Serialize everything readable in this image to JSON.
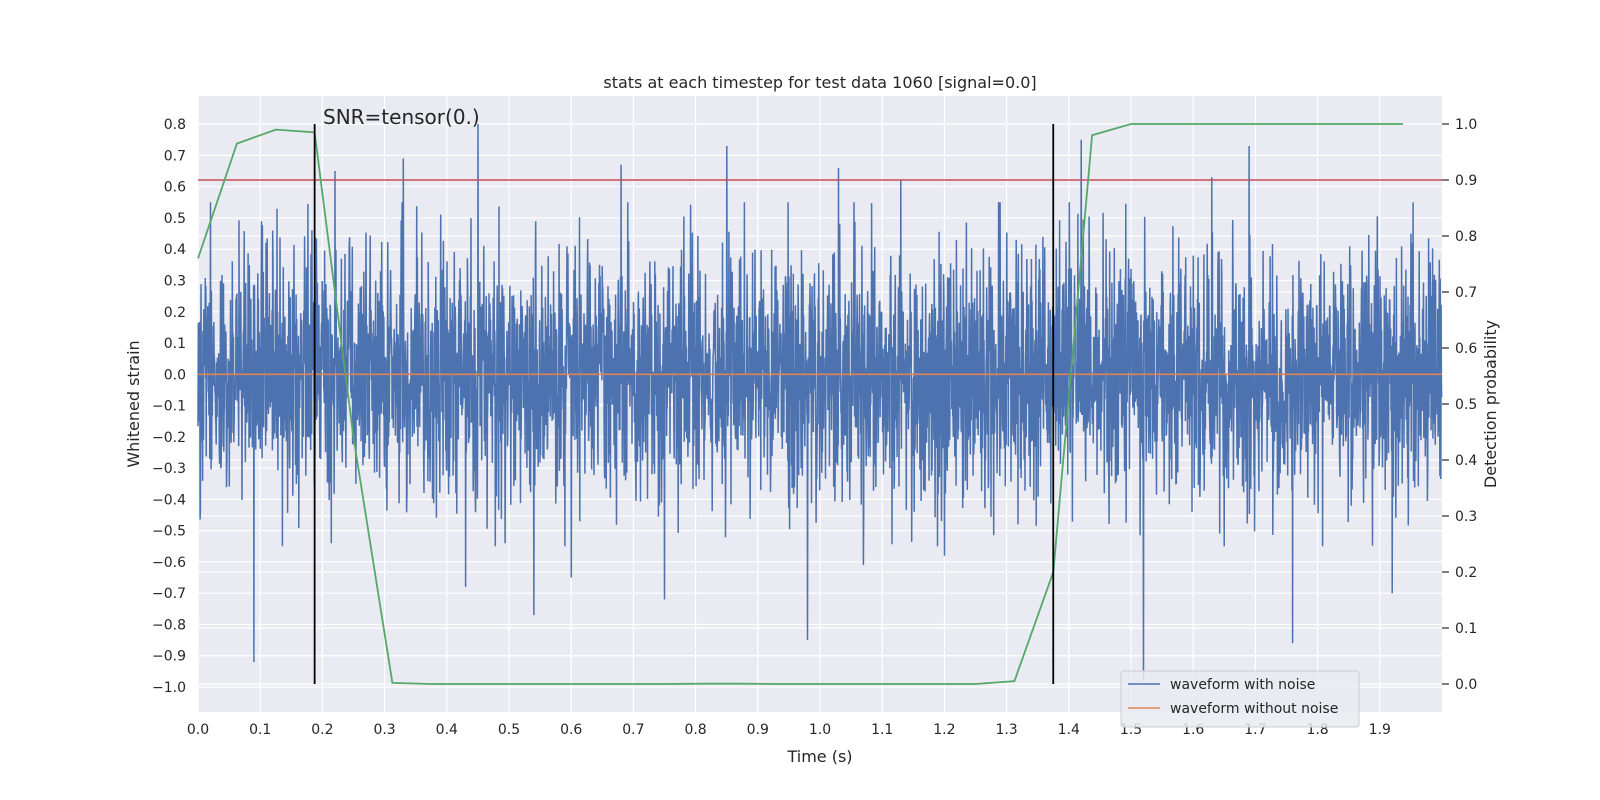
{
  "chart_data": {
    "type": "line",
    "title": "stats at each timestep for test data 1060 [signal=0.0]",
    "xlabel": "Time (s)",
    "ylabel": "Whitened strain",
    "y2label": "Detection probability",
    "xlim": [
      0.0,
      2.0
    ],
    "ylim": [
      -1.08,
      0.89
    ],
    "y2lim": [
      -0.05,
      1.05
    ],
    "xticks": [
      "0.0",
      "0.1",
      "0.2",
      "0.3",
      "0.4",
      "0.5",
      "0.6",
      "0.7",
      "0.8",
      "0.9",
      "1.0",
      "1.1",
      "1.2",
      "1.3",
      "1.4",
      "1.5",
      "1.6",
      "1.7",
      "1.8",
      "1.9"
    ],
    "yticks": [
      "0.8",
      "0.7",
      "0.6",
      "0.5",
      "0.4",
      "0.3",
      "0.2",
      "0.1",
      "0.0",
      "−0.1",
      "−0.2",
      "−0.3",
      "−0.4",
      "−0.5",
      "−0.6",
      "−0.7",
      "−0.8",
      "−0.9",
      "−1.0"
    ],
    "y2ticks": [
      "1.0",
      "0.9",
      "0.8",
      "0.7",
      "0.6",
      "0.5",
      "0.4",
      "0.3",
      "0.2",
      "0.1",
      "0.0"
    ],
    "grid": true,
    "legend_position": "lower-right",
    "annotation": "SNR=tensor(0.)",
    "series": [
      {
        "name": "waveform with noise",
        "color": "#4c72b0",
        "kind": "noise",
        "sample_rate": 2048,
        "std": 0.2,
        "spikes": [
          [
            0.02,
            0.55
          ],
          [
            0.09,
            -0.92
          ],
          [
            0.12,
            0.46
          ],
          [
            0.22,
            0.65
          ],
          [
            0.33,
            0.69
          ],
          [
            0.43,
            -0.68
          ],
          [
            0.45,
            0.8
          ],
          [
            0.54,
            -0.77
          ],
          [
            0.6,
            -0.65
          ],
          [
            0.68,
            0.67
          ],
          [
            0.75,
            -0.72
          ],
          [
            0.85,
            0.73
          ],
          [
            0.98,
            -0.85
          ],
          [
            1.03,
            0.66
          ],
          [
            1.07,
            -0.61
          ],
          [
            1.13,
            0.62
          ],
          [
            1.2,
            -0.58
          ],
          [
            1.42,
            0.75
          ],
          [
            1.52,
            -0.98
          ],
          [
            1.63,
            0.63
          ],
          [
            1.69,
            0.73
          ],
          [
            1.76,
            -0.86
          ],
          [
            1.92,
            -0.7
          ],
          [
            1.95,
            0.45
          ]
        ]
      },
      {
        "name": "waveform without noise",
        "color": "#dd8452",
        "kind": "constant",
        "value": 0.0
      },
      {
        "name": "",
        "color": "#55a868",
        "axis": "right",
        "x": [
          0.0,
          0.0625,
          0.125,
          0.1875,
          0.25,
          0.3125,
          0.375,
          0.4375,
          0.5,
          0.5625,
          0.625,
          0.6875,
          0.75,
          0.8125,
          0.875,
          0.9375,
          1.0,
          1.0625,
          1.125,
          1.1875,
          1.25,
          1.3125,
          1.375,
          1.4375,
          1.5,
          1.5625,
          1.625,
          1.6875,
          1.75,
          1.8125,
          1.875,
          1.9375
        ],
        "values": [
          0.76,
          0.965,
          0.99,
          0.985,
          0.44,
          0.002,
          0.0,
          0.0,
          0.0,
          0.0,
          0.0,
          0.0,
          0.0,
          0.0005,
          0.0005,
          0.0,
          0.0,
          0.0,
          0.0,
          0.0,
          0.0,
          0.005,
          0.2,
          0.98,
          1.0,
          1.0,
          1.0,
          1.0,
          1.0,
          1.0,
          1.0,
          1.0
        ]
      }
    ],
    "hlines": [
      {
        "y2": 0.9,
        "color": "#c44e52"
      }
    ],
    "vlines": [
      {
        "x": 0.1875,
        "color": "#000000"
      },
      {
        "x": 1.375,
        "color": "#000000"
      }
    ]
  }
}
